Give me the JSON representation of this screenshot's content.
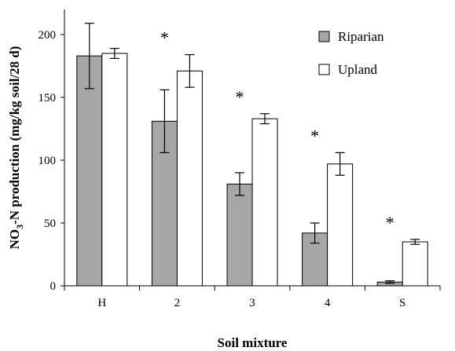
{
  "chart_data": {
    "type": "bar",
    "xlabel": "Soil mixture",
    "ylabel_parts": [
      "NO",
      "3",
      "-N production (mg/kg soil/28 d)"
    ],
    "categories": [
      "H",
      "2",
      "3",
      "4",
      "S"
    ],
    "ylim": [
      0,
      220
    ],
    "yticks": [
      "0",
      "50",
      "100",
      "150",
      "200"
    ],
    "grid": false,
    "legend_position": "top-right",
    "series": [
      {
        "name": "Riparian",
        "color": "#a6a6a6",
        "values": [
          183,
          131,
          81,
          42,
          3
        ],
        "errors": [
          26,
          25,
          9,
          8,
          1
        ]
      },
      {
        "name": "Upland",
        "color": "#ffffff",
        "values": [
          185,
          171,
          133,
          97,
          35
        ],
        "errors": [
          4,
          13,
          4,
          9,
          2
        ]
      }
    ],
    "significance_marker": "*",
    "significant_categories": [
      "2",
      "3",
      "4",
      "S"
    ]
  }
}
